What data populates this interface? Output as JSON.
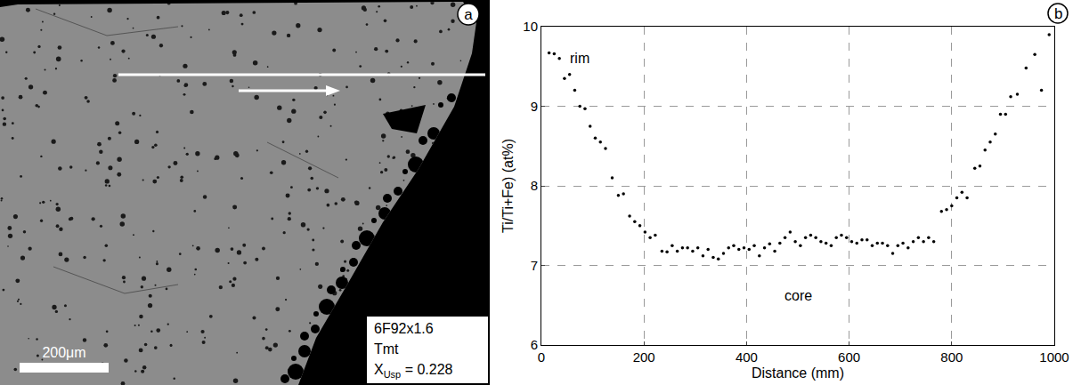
{
  "image_panel": {
    "letter": "a",
    "sample": "6F92x1.6",
    "phase": "Tmt",
    "composition": {
      "symbol": "X",
      "subscript": "Usp",
      "text": " = 0.228"
    },
    "scale_bar": "200μm"
  },
  "chart_data": {
    "type": "scatter",
    "panel_letter": "b",
    "x_label": "Distance (mm)",
    "y_label": "Ti/Ti+Fe) (at%)",
    "x": [
      15,
      25,
      35,
      45,
      55,
      65,
      75,
      85,
      95,
      105,
      115,
      125,
      138,
      150,
      160,
      172,
      182,
      192,
      202,
      212,
      222,
      235,
      245,
      255,
      265,
      275,
      285,
      295,
      305,
      315,
      325,
      335,
      345,
      355,
      365,
      375,
      385,
      395,
      405,
      415,
      425,
      435,
      445,
      455,
      465,
      475,
      485,
      495,
      505,
      515,
      525,
      535,
      545,
      555,
      565,
      575,
      585,
      595,
      605,
      615,
      625,
      635,
      645,
      655,
      665,
      675,
      685,
      695,
      705,
      715,
      725,
      735,
      745,
      755,
      765,
      780,
      790,
      800,
      810,
      820,
      830,
      845,
      855,
      865,
      875,
      885,
      895,
      905,
      915,
      928,
      945,
      962,
      975,
      990
    ],
    "values": [
      9.67,
      9.66,
      9.6,
      9.35,
      9.4,
      9.2,
      9.0,
      8.97,
      8.75,
      8.6,
      8.55,
      8.47,
      8.1,
      7.88,
      7.9,
      7.62,
      7.55,
      7.5,
      7.42,
      7.35,
      7.38,
      7.18,
      7.17,
      7.25,
      7.18,
      7.22,
      7.22,
      7.18,
      7.22,
      7.12,
      7.2,
      7.1,
      7.08,
      7.15,
      7.22,
      7.25,
      7.2,
      7.22,
      7.2,
      7.25,
      7.12,
      7.22,
      7.27,
      7.18,
      7.28,
      7.35,
      7.42,
      7.3,
      7.25,
      7.35,
      7.38,
      7.35,
      7.3,
      7.28,
      7.25,
      7.35,
      7.38,
      7.35,
      7.3,
      7.28,
      7.32,
      7.32,
      7.25,
      7.28,
      7.28,
      7.25,
      7.15,
      7.25,
      7.28,
      7.22,
      7.3,
      7.35,
      7.3,
      7.35,
      7.3,
      7.68,
      7.7,
      7.75,
      7.85,
      7.92,
      7.85,
      8.22,
      8.25,
      8.45,
      8.55,
      8.65,
      8.9,
      8.9,
      9.12,
      9.15,
      9.48,
      9.65,
      9.2,
      9.9
    ],
    "color": "#000000",
    "marker": "circle",
    "xlim": [
      0,
      1000
    ],
    "xticks": [
      0,
      200,
      400,
      600,
      800,
      1000
    ],
    "ylim": [
      6,
      10
    ],
    "yticks": [
      6,
      7,
      8,
      9,
      10
    ],
    "grid": true,
    "annotations": [
      {
        "text": "rim",
        "x": 75,
        "y": 9.6
      },
      {
        "text": "core",
        "x": 500,
        "y": 6.62
      }
    ]
  }
}
